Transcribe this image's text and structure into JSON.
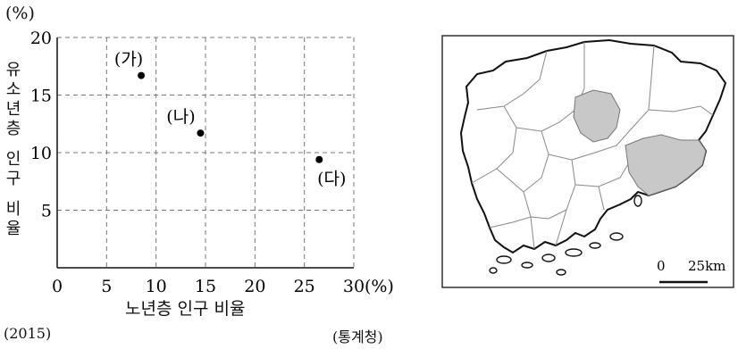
{
  "chart_data": {
    "type": "scatter",
    "title": "",
    "xlabel": "노년층 인구 비율",
    "ylabel": "유소년층 인구 비율",
    "x_unit": "(%)",
    "y_unit": "(%)",
    "xlim": [
      0,
      30
    ],
    "ylim": [
      0,
      20
    ],
    "x_ticks": [
      "0",
      "5",
      "10",
      "15",
      "20",
      "25",
      "30"
    ],
    "y_ticks": [
      "5",
      "10",
      "15",
      "20"
    ],
    "grid": true,
    "points": [
      {
        "label": "(가)",
        "x": 8.5,
        "y": 16.7
      },
      {
        "label": "(나)",
        "x": 14.5,
        "y": 11.7
      },
      {
        "label": "(다)",
        "x": 26.5,
        "y": 9.4
      }
    ]
  },
  "footnotes": {
    "year": "(2015)",
    "source": "(통계청)"
  },
  "map": {
    "scale_zero": "0",
    "scale_label": "25km",
    "fill_color": "#c8c8c8"
  }
}
